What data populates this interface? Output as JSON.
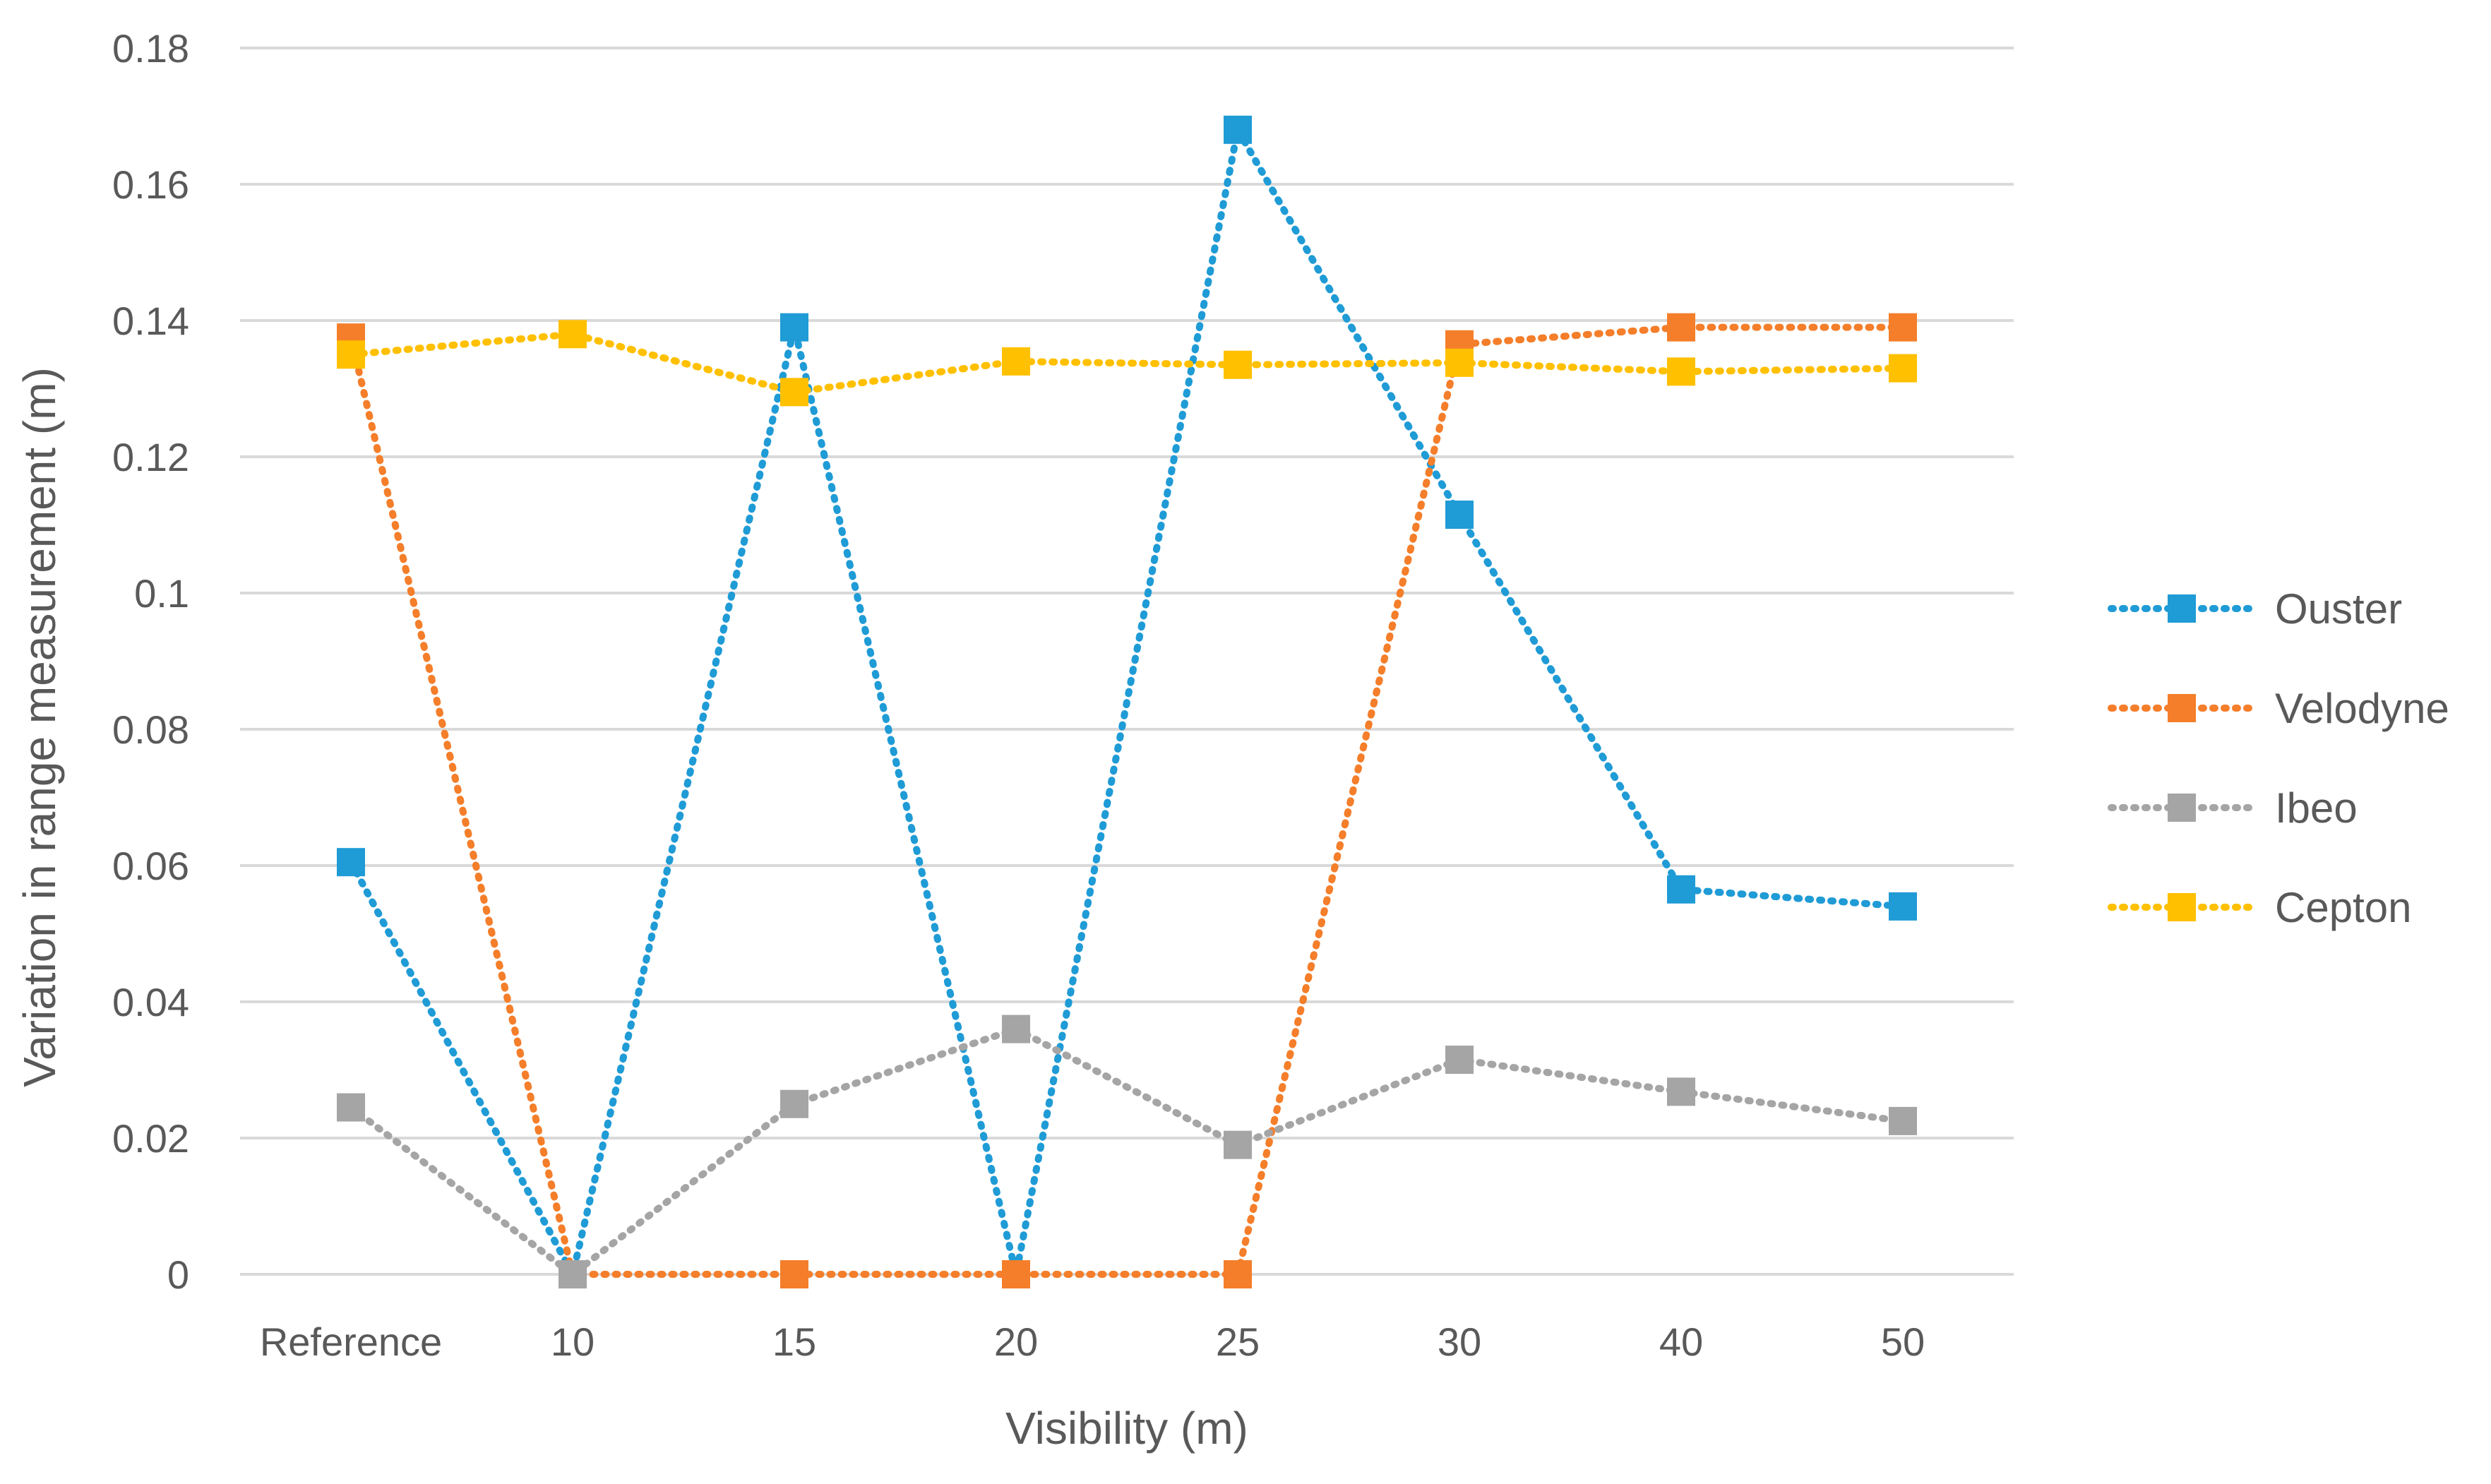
{
  "chart_data": {
    "type": "line",
    "title": "",
    "xlabel": "Visibility (m)",
    "ylabel": "Variation in range measurement (m)",
    "categories": [
      "Reference",
      "10",
      "15",
      "20",
      "25",
      "30",
      "40",
      "50"
    ],
    "yticks": [
      "0",
      "0.02",
      "0.04",
      "0.06",
      "0.08",
      "0.1",
      "0.12",
      "0.14",
      "0.16",
      "0.18"
    ],
    "ylim": [
      0,
      0.18
    ],
    "grid": true,
    "legend_position": "right",
    "series": [
      {
        "name": "Ouster",
        "color": "#1f9bd6",
        "values": [
          0.0605,
          0.0,
          0.139,
          0.0,
          0.168,
          0.1115,
          0.0565,
          0.054
        ]
      },
      {
        "name": "Velodyne",
        "color": "#f47e2a",
        "values": [
          0.1375,
          0.0,
          0.0,
          0.0,
          0.0,
          0.1365,
          0.139,
          0.139
        ]
      },
      {
        "name": "Ibeo",
        "color": "#a5a5a5",
        "values": [
          0.0245,
          0.0,
          0.025,
          0.036,
          0.019,
          0.0315,
          0.0268,
          0.0225
        ]
      },
      {
        "name": "Cepton",
        "color": "#ffc000",
        "values": [
          0.135,
          0.138,
          0.1295,
          0.134,
          0.1335,
          0.1338,
          0.1325,
          0.133
        ]
      }
    ]
  }
}
